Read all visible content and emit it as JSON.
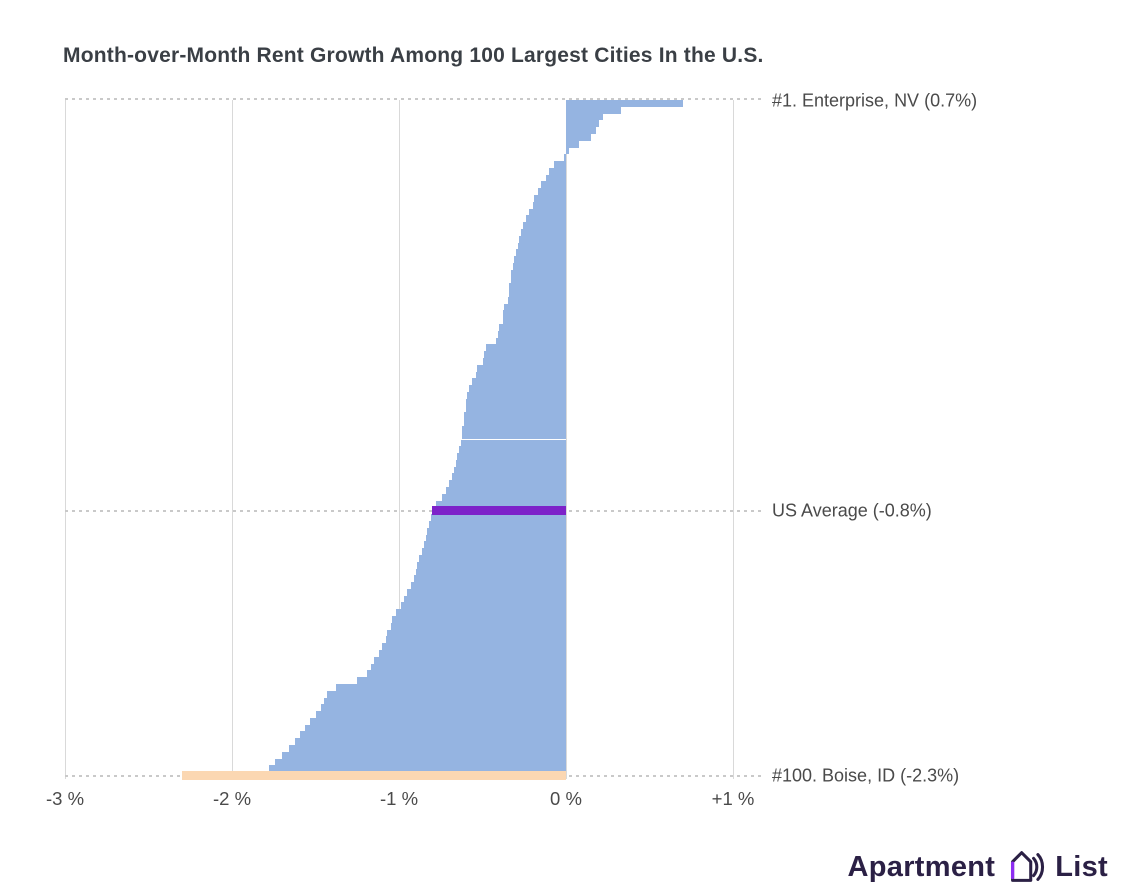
{
  "chart_data": {
    "type": "bar",
    "orientation": "horizontal",
    "title": "Month-over-Month Rent Growth Among 100 Largest Cities In the U.S.",
    "xlabel": "",
    "ylabel": "",
    "unit": "%",
    "xlim": [
      -3,
      1
    ],
    "x_ticks": [
      "-3 %",
      "-2 %",
      "-1 %",
      "0 %",
      "+1 %"
    ],
    "x_tick_values": [
      -3,
      -2,
      -1,
      0,
      1
    ],
    "n_cities": 100,
    "grid": "vertical-only",
    "values": [
      0.7,
      0.33,
      0.22,
      0.2,
      0.18,
      0.15,
      0.08,
      0.02,
      -0.01,
      -0.07,
      -0.1,
      -0.12,
      -0.15,
      -0.17,
      -0.19,
      -0.2,
      -0.22,
      -0.24,
      -0.26,
      -0.27,
      -0.28,
      -0.29,
      -0.3,
      -0.31,
      -0.32,
      -0.33,
      -0.33,
      -0.34,
      -0.34,
      -0.35,
      -0.37,
      -0.38,
      -0.38,
      -0.4,
      -0.41,
      -0.42,
      -0.48,
      -0.49,
      -0.5,
      -0.53,
      -0.54,
      -0.56,
      -0.58,
      -0.59,
      -0.6,
      -0.6,
      -0.61,
      -0.61,
      -0.62,
      -0.62,
      -0.63,
      -0.64,
      -0.65,
      -0.66,
      -0.67,
      -0.68,
      -0.7,
      -0.72,
      -0.74,
      -0.78,
      -0.8,
      -0.81,
      -0.82,
      -0.83,
      -0.84,
      -0.85,
      -0.86,
      -0.88,
      -0.89,
      -0.9,
      -0.91,
      -0.93,
      -0.95,
      -0.97,
      -0.99,
      -1.02,
      -1.04,
      -1.05,
      -1.07,
      -1.08,
      -1.1,
      -1.12,
      -1.15,
      -1.17,
      -1.19,
      -1.25,
      -1.38,
      -1.43,
      -1.45,
      -1.47,
      -1.5,
      -1.53,
      -1.56,
      -1.59,
      -1.62,
      -1.66,
      -1.7,
      -1.74,
      -1.78,
      -2.3
    ],
    "annotations": [
      {
        "label": "#1. Enterprise, NV (0.7%)",
        "value": 0.7
      },
      {
        "label": "US Average (-0.8%)",
        "value": -0.8
      },
      {
        "label": "#100. Boise, ID (-2.3%)",
        "value": -2.3
      }
    ],
    "legend": "none",
    "colors": {
      "bar": "#95b4e1",
      "highlight_bottom": "#fbd7b2",
      "average_line": "#7d22c9",
      "gridline": "#d9d9d9",
      "dashed_line": "#c9c9c9"
    }
  },
  "branding": {
    "logo_left": "Apartment",
    "logo_right": "List",
    "logo_dark": "#2b2045",
    "logo_accent": "#8d2df2"
  }
}
